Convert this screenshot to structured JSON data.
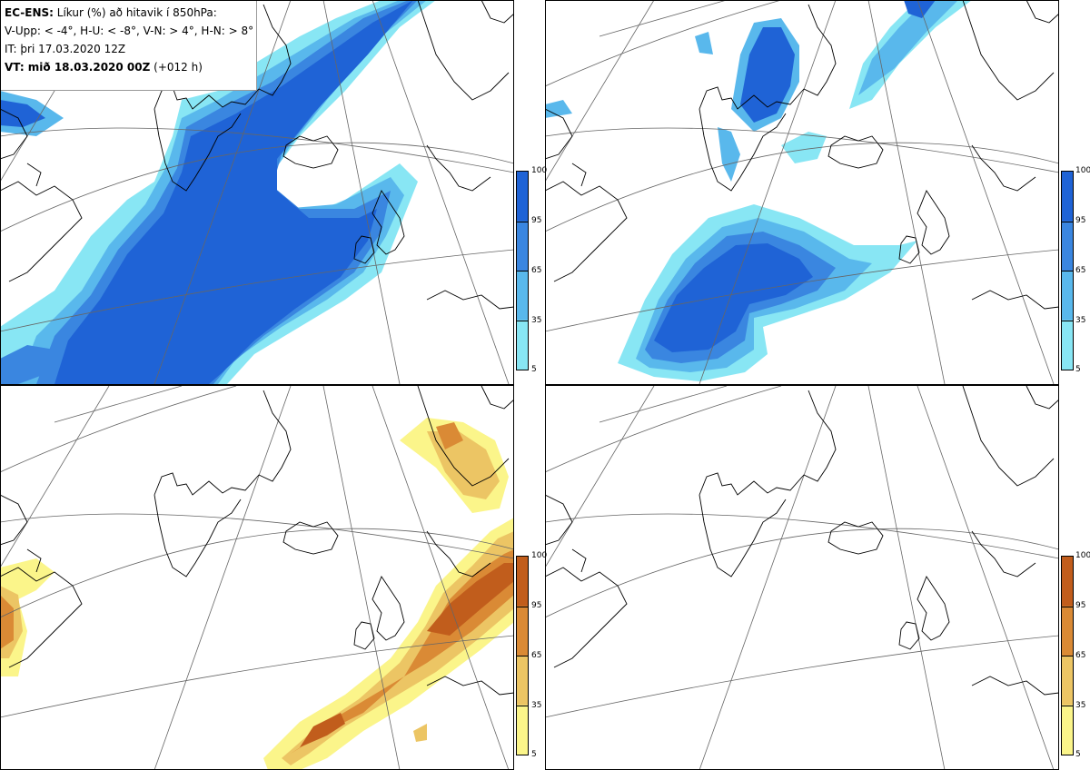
{
  "info": {
    "title_bold": "EC-ENS:",
    "title_rest": "Líkur (%) að hitavik í 850hPa:",
    "thresholds": "V-Upp: < -4°, H-U: < -8°, V-N: > 4°, H-N: > 8°",
    "issue_time": "IT: þri 17.03.2020 12Z",
    "valid_label": "VT: mið 18.03.2020 00Z",
    "lead": "(+012 h)"
  },
  "colorbar_cold": {
    "ticks": [
      "100",
      "95",
      "65",
      "35",
      "5"
    ],
    "colors": [
      "#1f63d6",
      "#3a86e0",
      "#59b8ec",
      "#88e6f4"
    ]
  },
  "colorbar_warm": {
    "ticks": [
      "100",
      "95",
      "65",
      "35",
      "5"
    ],
    "colors": [
      "#c15d1c",
      "#da8a35",
      "#ecc564",
      "#fbf58a"
    ]
  },
  "panels": [
    {
      "name": "V-Upp",
      "field": "cold",
      "max_probability": 100
    },
    {
      "name": "H-U",
      "field": "cold",
      "max_probability": 100
    },
    {
      "name": "V-N",
      "field": "warm",
      "max_probability": 100
    },
    {
      "name": "H-N",
      "field": "warm",
      "max_probability": 0
    }
  ]
}
